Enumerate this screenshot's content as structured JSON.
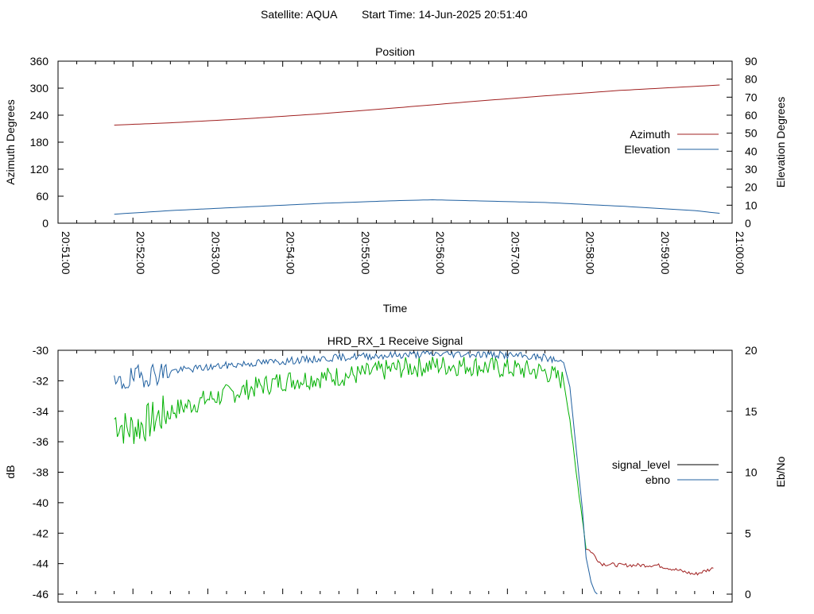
{
  "header": {
    "satellite": "Satellite: AQUA",
    "start_time": "Start Time: 14-Jun-2025 20:51:40"
  },
  "colors": {
    "azimuth": "#a02020",
    "elevation": "#2060a0",
    "signal_red": "#a02020",
    "signal_green": "#00b000",
    "ebno": "#2060a0"
  },
  "chart_data": [
    {
      "type": "line",
      "title": "Position",
      "xlabel": "Time",
      "ylabel": "Azimuth Degrees",
      "y2label": "Elevation Degrees",
      "xticks": [
        "20:51:00",
        "20:52:00",
        "20:53:00",
        "20:54:00",
        "20:55:00",
        "20:56:00",
        "20:57:00",
        "20:58:00",
        "20:59:00",
        "21:00:00"
      ],
      "yticks": [
        0,
        60,
        120,
        180,
        240,
        300,
        360
      ],
      "y2ticks": [
        0,
        10,
        20,
        30,
        40,
        50,
        60,
        70,
        80,
        90
      ],
      "ylim": [
        0,
        360
      ],
      "y2lim": [
        0,
        90
      ],
      "legend": "right",
      "series": [
        {
          "name": "Azimuth",
          "axis": "y1",
          "x": [
            "20:51:45",
            "20:52:30",
            "20:53:30",
            "20:54:30",
            "20:55:30",
            "20:56:30",
            "20:57:30",
            "20:58:30",
            "20:59:30",
            "20:59:50"
          ],
          "values": [
            218,
            223,
            232,
            243,
            256,
            270,
            283,
            295,
            304,
            307
          ]
        },
        {
          "name": "Elevation",
          "axis": "y2",
          "x": [
            "20:51:45",
            "20:52:30",
            "20:53:30",
            "20:54:30",
            "20:55:30",
            "20:56:00",
            "20:56:30",
            "20:57:30",
            "20:58:30",
            "20:59:30",
            "20:59:50"
          ],
          "values": [
            5,
            7,
            9,
            11,
            12.5,
            13,
            12.5,
            11.5,
            9.5,
            7,
            5.5
          ]
        }
      ]
    },
    {
      "type": "line",
      "title": "HRD_RX_1 Receive Signal",
      "ylabel": "dB",
      "y2label": "Eb/No",
      "yticks": [
        -30,
        -32,
        -34,
        -36,
        -38,
        -40,
        -42,
        -44,
        -46
      ],
      "y2ticks": [
        0,
        5,
        10,
        15,
        20
      ],
      "ylim": [
        -46,
        -30
      ],
      "y2lim": [
        0,
        20
      ],
      "legend": "right",
      "series": [
        {
          "name": "signal_level",
          "axis": "y1",
          "x": [
            "20:51:45",
            "20:51:55",
            "20:52:10",
            "20:52:30",
            "20:53:00",
            "20:53:30",
            "20:54:00",
            "20:54:30",
            "20:55:00",
            "20:55:30",
            "20:56:00",
            "20:56:30",
            "20:57:00",
            "20:57:30",
            "20:57:45",
            "20:57:50",
            "20:57:55",
            "20:58:00",
            "20:58:03",
            "20:58:07",
            "20:58:15",
            "20:58:30",
            "20:59:00",
            "20:59:15",
            "20:59:30",
            "20:59:45"
          ],
          "values": [
            -34.5,
            -35.2,
            -34.8,
            -34.0,
            -33.2,
            -32.6,
            -32.0,
            -31.8,
            -31.6,
            -31.2,
            -31.0,
            -31.0,
            -31.2,
            -31.4,
            -32.0,
            -34.5,
            -38.0,
            -41.0,
            -43.0,
            -43.2,
            -44.0,
            -44.1,
            -44.1,
            -44.4,
            -44.7,
            -44.3
          ]
        },
        {
          "name": "ebno",
          "axis": "y2",
          "x": [
            "20:51:45",
            "20:51:55",
            "20:52:10",
            "20:52:30",
            "20:53:00",
            "20:53:30",
            "20:54:00",
            "20:54:30",
            "20:55:00",
            "20:55:30",
            "20:56:00",
            "20:56:30",
            "20:57:00",
            "20:57:30",
            "20:57:45",
            "20:57:50",
            "20:57:55",
            "20:58:00",
            "20:58:03",
            "20:58:07",
            "20:58:10",
            "20:58:12"
          ],
          "values": [
            17.0,
            17.5,
            18.0,
            18.3,
            18.6,
            18.9,
            19.1,
            19.3,
            19.5,
            19.6,
            19.7,
            19.7,
            19.6,
            19.4,
            19.0,
            17.0,
            12.0,
            7.0,
            3.0,
            1.0,
            0.2,
            0
          ]
        }
      ]
    }
  ]
}
